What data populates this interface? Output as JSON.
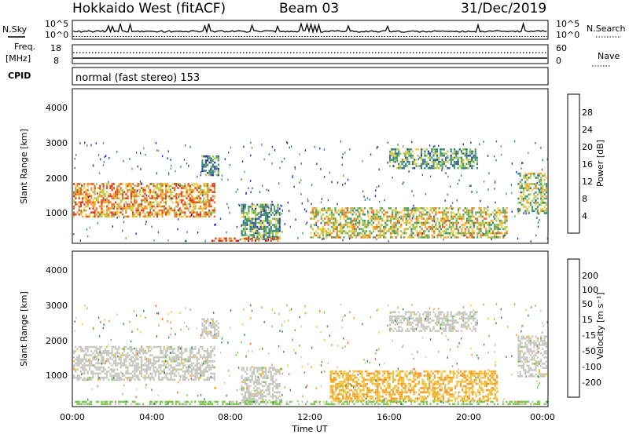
{
  "header": {
    "radar": "Hokkaido West (fitACF)",
    "beam": "Beam 03",
    "date": "31/Dec/2019"
  },
  "top_panels": {
    "nsky_label": "N.Sky",
    "nsearch_label": "N.Search",
    "noise_ticks_left": [
      "10^5",
      "10^0"
    ],
    "noise_ticks_right": [
      "10^5",
      "10^0"
    ],
    "freq_label_1": "Freq.",
    "freq_label_2": "[MHz]",
    "freq_ticks": [
      "18",
      "8"
    ],
    "nave_ticks": [
      "60",
      "0"
    ],
    "nave_label": "Nave",
    "cpid_label": "CPID",
    "cpid_text": "normal (fast stereo) 153"
  },
  "colors": {
    "power_scale": [
      "#1f2bd6",
      "#2f3d9a",
      "#3a6e9a",
      "#2f8f78",
      "#5aa45a",
      "#a7c94f",
      "#f0d040",
      "#f2a431",
      "#ee6a1f",
      "#e23a1c",
      "#d81818"
    ],
    "velocity_scale": [
      "#1f2bd6",
      "#3a4fb0",
      "#3a7a7c",
      "#2f9a3a",
      "#78c84a",
      "#c7c7c2",
      "#f2c23a",
      "#f29a2a",
      "#ee6a1f",
      "#e23a1c",
      "#d81818"
    ],
    "ground_scatter": "#c7c7c2"
  },
  "chart_data": [
    {
      "type": "heatmap",
      "name": "power",
      "xlabel": "",
      "ylabel": "Slant Range [km]",
      "yticks": [
        "1000",
        "2000",
        "3000",
        "4000"
      ],
      "ylim": [
        180,
        4600
      ],
      "colorbar_label": "Power [dB]",
      "colorbar_ticks": [
        "4",
        "8",
        "12",
        "16",
        "20",
        "24",
        "28"
      ],
      "colorbar_range": [
        0,
        32
      ],
      "xlim_hours": [
        0,
        24
      ],
      "regions": [
        {
          "t0": 0.0,
          "t1": 7.2,
          "r0": 900,
          "r1": 1900,
          "value": 22
        },
        {
          "t0": 6.5,
          "t1": 7.4,
          "r0": 2100,
          "r1": 2700,
          "value": 10
        },
        {
          "t0": 8.5,
          "t1": 10.5,
          "r0": 250,
          "r1": 1300,
          "value": 12
        },
        {
          "t0": 12.0,
          "t1": 22.0,
          "r0": 300,
          "r1": 1200,
          "value": 18
        },
        {
          "t0": 16.0,
          "t1": 20.5,
          "r0": 2300,
          "r1": 2900,
          "value": 12
        },
        {
          "t0": 22.5,
          "t1": 24.0,
          "r0": 1000,
          "r1": 2200,
          "value": 16
        },
        {
          "t0": 7.0,
          "t1": 10.5,
          "r0": 200,
          "r1": 330,
          "value": 26
        }
      ]
    },
    {
      "type": "heatmap",
      "name": "velocity",
      "xlabel": "Time UT",
      "ylabel": "Slant Range [km]",
      "xticks": [
        "00:00",
        "04:00",
        "08:00",
        "12:00",
        "16:00",
        "20:00",
        "00:00"
      ],
      "yticks": [
        "1000",
        "2000",
        "3000",
        "4000"
      ],
      "ylim": [
        180,
        4600
      ],
      "colorbar_label": "Velocity [m s⁻¹]",
      "colorbar_ticks": [
        "200",
        "100",
        "50",
        "15",
        "-15",
        "-50",
        "-100",
        "-200"
      ],
      "colorbar_range": [
        -250,
        250
      ],
      "xlim_hours": [
        0,
        24
      ],
      "regions": [
        {
          "t0": 0.0,
          "t1": 7.2,
          "r0": 900,
          "r1": 1900,
          "value": 0
        },
        {
          "t0": 6.5,
          "t1": 7.4,
          "r0": 2100,
          "r1": 2700,
          "value": 0
        },
        {
          "t0": 8.5,
          "t1": 10.5,
          "r0": 250,
          "r1": 1300,
          "value": 0
        },
        {
          "t0": 13.0,
          "t1": 21.5,
          "r0": 300,
          "r1": 1200,
          "value": -60
        },
        {
          "t0": 16.0,
          "t1": 20.5,
          "r0": 2300,
          "r1": 2900,
          "value": 0
        },
        {
          "t0": 22.5,
          "t1": 24.0,
          "r0": 1000,
          "r1": 2200,
          "value": 0
        },
        {
          "t0": 0.0,
          "t1": 24.0,
          "r0": 200,
          "r1": 330,
          "value": 40
        }
      ]
    }
  ]
}
